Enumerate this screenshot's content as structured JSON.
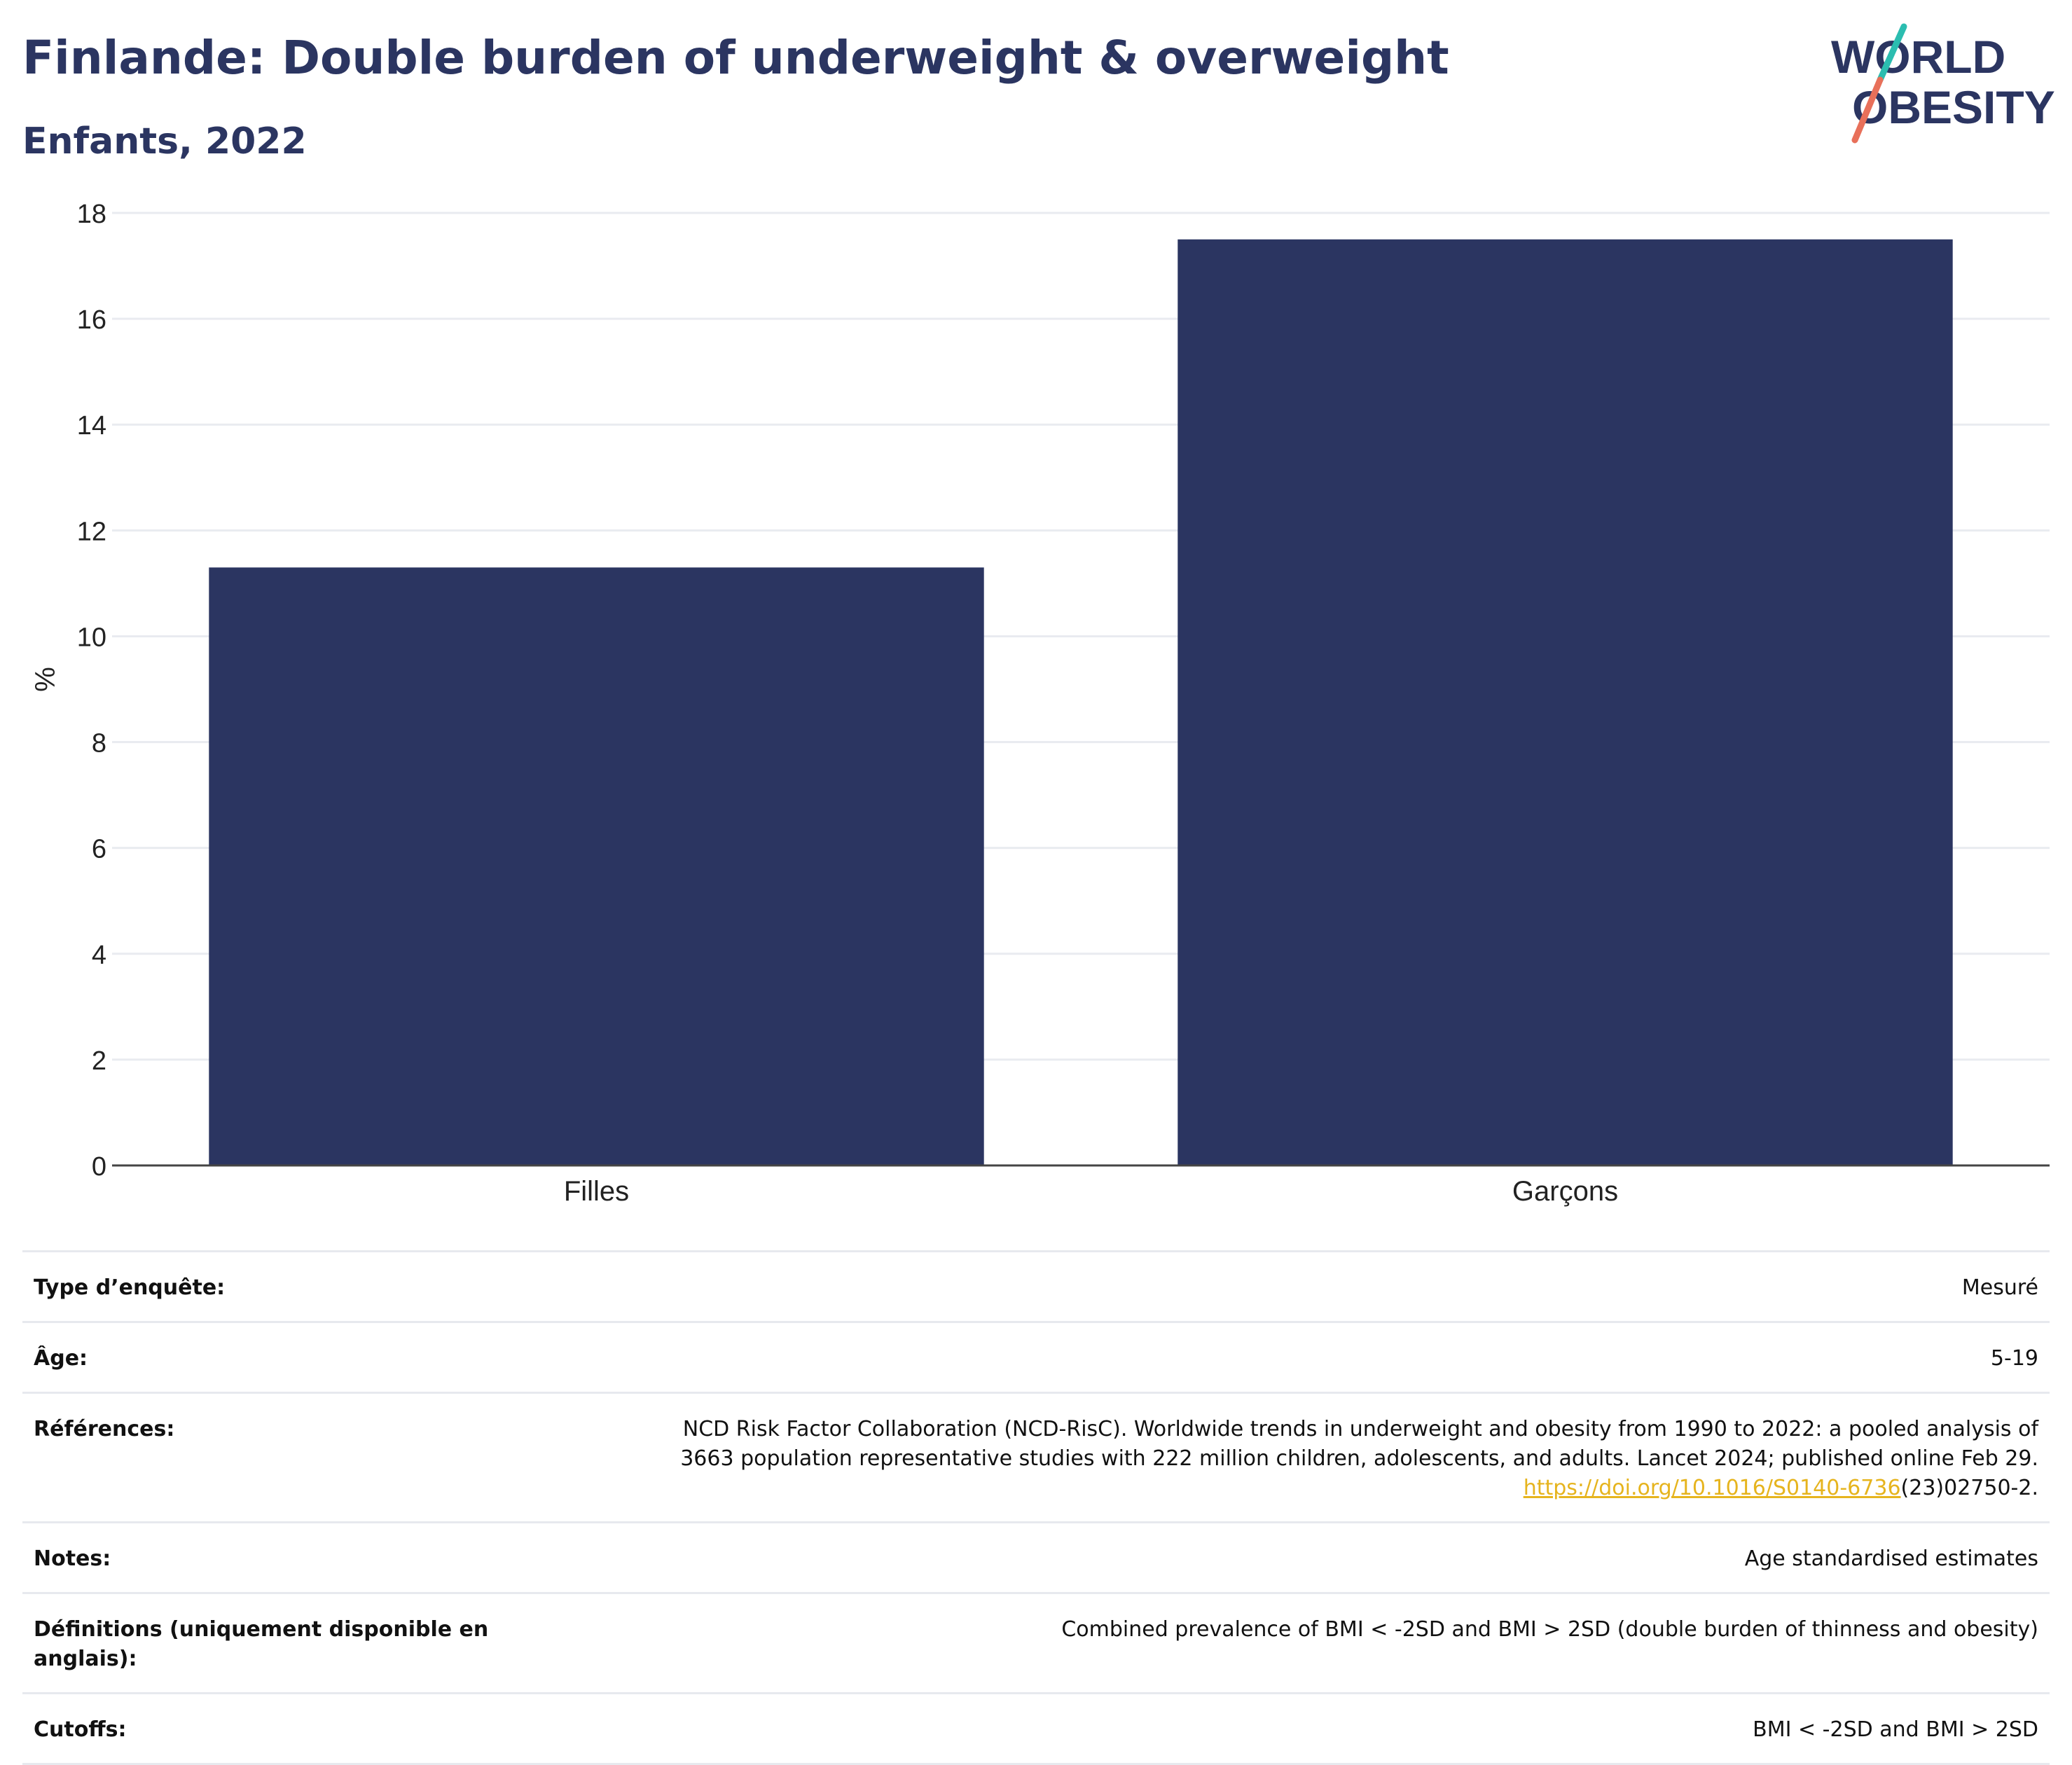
{
  "header": {
    "title": "Finlande: Double burden of underweight & overweight",
    "subtitle": "Enfants, 2022"
  },
  "logo": {
    "line1": "WORLD",
    "line2": "OBESITY"
  },
  "colors": {
    "bar": "#2b3561",
    "title": "#2b3561",
    "grid": "#e9ebf0",
    "link": "#e6b41e",
    "logo_teal": "#2bbdb0",
    "logo_coral": "#e8705a"
  },
  "chart_data": {
    "type": "bar",
    "categories": [
      "Filles",
      "Garçons"
    ],
    "values": [
      11.3,
      17.5
    ],
    "ylabel": "%",
    "xlabel": "",
    "ylim": [
      0,
      18
    ],
    "yticks": [
      0,
      2,
      4,
      6,
      8,
      10,
      12,
      14,
      16,
      18
    ],
    "grid": true,
    "legend": "none"
  },
  "info": {
    "survey_label": "Type d’enquête:",
    "survey_value": "Mesuré",
    "age_label": "Âge:",
    "age_value": "5-19",
    "refs_label": "Références:",
    "refs_line1": "NCD Risk Factor Collaboration (NCD-RisC). Worldwide trends in underweight and obesity from 1990 to 2022: a pooled analysis of",
    "refs_line2": "3663 population representative studies with 222 million children, adolescents, and adults. Lancet 2024; published online Feb 29.",
    "refs_link": "https://doi.org/10.1016/S0140-6736",
    "refs_link_tail": "(23)02750-2.",
    "notes_label": "Notes:",
    "notes_value": "Age standardised estimates",
    "defs_label": "Définitions (uniquement disponible en anglais):",
    "defs_value": "Combined prevalence of BMI < -2SD and BMI > 2SD (double burden of thinness and obesity)",
    "cutoffs_label": "Cutoffs:",
    "cutoffs_value": "BMI < -2SD and BMI > 2SD"
  }
}
